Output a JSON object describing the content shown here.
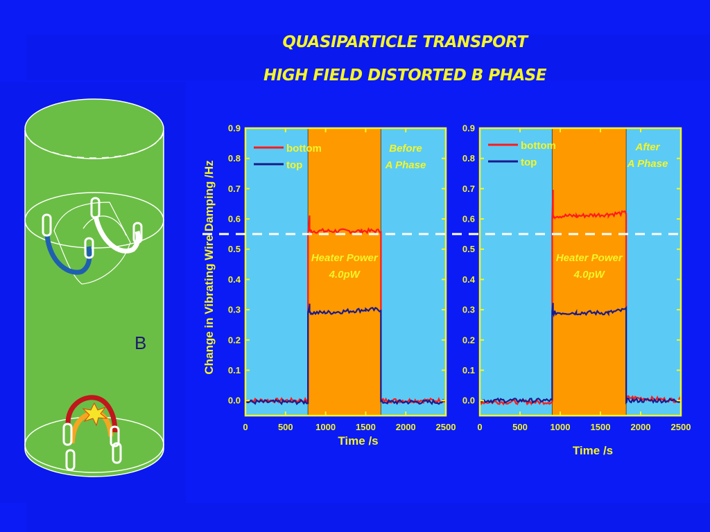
{
  "slide": {
    "title_line1": "QUASIPARTICLE TRANSPORT",
    "title_line2": "HIGH FIELD DISTORTED B PHASE",
    "colors": {
      "background": "#0B1BF5",
      "title": "#F5F528",
      "plot_background": "#5BCBF5",
      "heater_band": "#FF9900",
      "annotation": "#F5F528"
    }
  },
  "diagram": {
    "phase_label": "B",
    "colors": {
      "cell": "#6BBE45",
      "outline": "#FFFFFF",
      "loop_blue": "#1F5FB0",
      "loop_white": "#FFFFFF",
      "loop_red": "#C0161C",
      "loop_orange": "#F7A520",
      "spark": "#F5E528"
    }
  },
  "chart_data": [
    {
      "type": "line",
      "ylabel": "Change in Vibrating Wire Damping /Hz",
      "xlabel": "Time /s",
      "xlim": [
        0,
        2500
      ],
      "ylim": [
        -0.05,
        0.9
      ],
      "xticks": [
        "0",
        "500",
        "1000",
        "1500",
        "2000",
        "2500"
      ],
      "yticks": [
        "0.0",
        "0.1",
        "0.2",
        "0.3",
        "0.4",
        "0.5",
        "0.6",
        "0.7",
        "0.8",
        "0.9"
      ],
      "legend_position": "top-left",
      "annotation_top_right": [
        "Before",
        "A Phase"
      ],
      "heater_label": [
        "Heater Power",
        "4.0pW"
      ],
      "heater_on": [
        780,
        1690
      ],
      "dashed_reference_y": 0.55,
      "series": [
        {
          "name": "bottom",
          "color": "#FF1A1A",
          "x": [
            0,
            780,
            780,
            800,
            800,
            820,
            1000,
            1450,
            1690,
            1690,
            1700,
            2500
          ],
          "y": [
            0.0,
            0.0,
            0.55,
            0.61,
            0.56,
            0.56,
            0.56,
            0.56,
            0.56,
            0.0,
            0.0,
            0.0
          ]
        },
        {
          "name": "top",
          "color": "#1A1A8C",
          "x": [
            0,
            780,
            780,
            800,
            800,
            820,
            1000,
            1500,
            1690,
            1690,
            1700,
            2500
          ],
          "y": [
            -0.005,
            -0.005,
            0.29,
            0.32,
            0.29,
            0.29,
            0.29,
            0.3,
            0.3,
            0.0,
            -0.005,
            -0.005
          ]
        }
      ]
    },
    {
      "type": "line",
      "ylabel": "",
      "xlabel": "Time /s",
      "xlim": [
        0,
        2500
      ],
      "ylim": [
        -0.05,
        0.9
      ],
      "xticks": [
        "0",
        "500",
        "1000",
        "1500",
        "2000",
        "2500"
      ],
      "yticks": [
        "0.0",
        "0.1",
        "0.2",
        "0.3",
        "0.4",
        "0.5",
        "0.6",
        "0.7",
        "0.8",
        "0.9"
      ],
      "legend_position": "top-left",
      "annotation_top_right": [
        "After",
        "A Phase"
      ],
      "heater_label": [
        "Heater Power",
        "4.0pW"
      ],
      "heater_on": [
        900,
        1820
      ],
      "dashed_reference_y": 0.55,
      "series": [
        {
          "name": "bottom",
          "color": "#FF1A1A",
          "x": [
            0,
            900,
            900,
            910,
            910,
            930,
            1200,
            1600,
            1820,
            1820,
            1830,
            2500
          ],
          "y": [
            -0.005,
            -0.005,
            0.6,
            0.69,
            0.61,
            0.61,
            0.61,
            0.615,
            0.62,
            0.0,
            0.01,
            0.0
          ]
        },
        {
          "name": "top",
          "color": "#1A1A8C",
          "x": [
            0,
            900,
            900,
            910,
            910,
            930,
            1200,
            1600,
            1820,
            1820,
            1830,
            2500
          ],
          "y": [
            0.0,
            0.0,
            0.29,
            0.32,
            0.29,
            0.29,
            0.29,
            0.29,
            0.3,
            0.0,
            0.0,
            0.0
          ]
        }
      ]
    }
  ]
}
